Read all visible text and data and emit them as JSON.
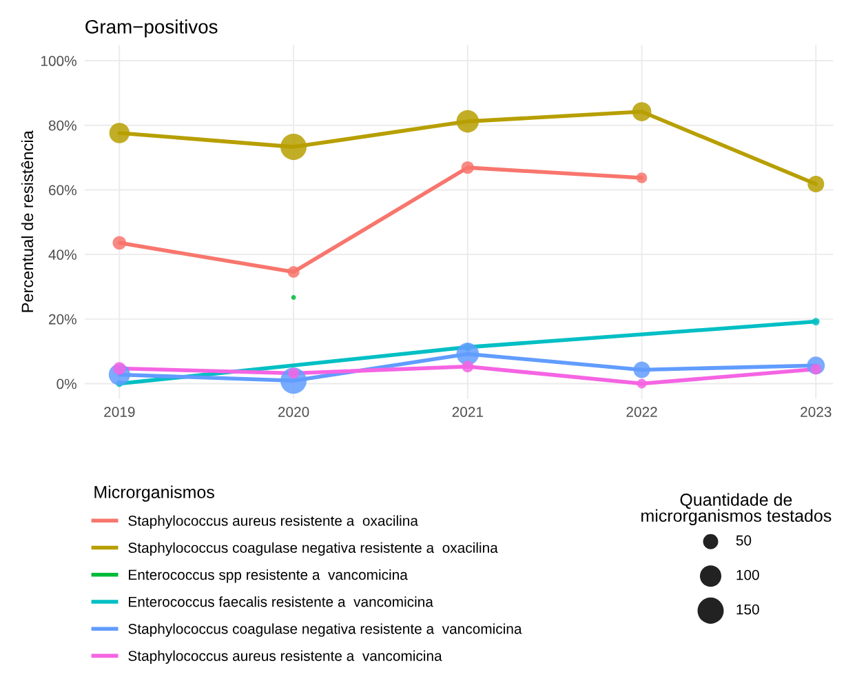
{
  "chart_data": {
    "type": "line",
    "title": "Gram−positivos",
    "ylabel": "Percentual de resistência",
    "legend_title": "Microrganismos",
    "x": [
      2019,
      2020,
      2021,
      2022,
      2023
    ],
    "xlim": [
      2018.8,
      2023.1
    ],
    "xticks": [
      2019,
      2020,
      2021,
      2022,
      2023
    ],
    "ylim": [
      -4.7,
      104.9
    ],
    "yticks": [
      {
        "value": 0,
        "label": "0%"
      },
      {
        "value": 20,
        "label": "20%"
      },
      {
        "value": 40,
        "label": "40%"
      },
      {
        "value": 60,
        "label": "60%"
      },
      {
        "value": 80,
        "label": "80%"
      },
      {
        "value": 100,
        "label": "100%"
      }
    ],
    "grid": true,
    "legend": "bottom",
    "line_style": "solid",
    "size_legend": [
      50,
      100,
      150
    ],
    "annotations": [
      "Quantidade de\nmicrorganismos testados"
    ],
    "series": [
      {
        "name": "Staphylococcus aureus resistente a  oxacilina",
        "color": "#f8766d",
        "values": [
          43.6,
          34.6,
          66.9,
          63.7,
          null
        ]
      },
      {
        "name": "Staphylococcus coagulase negativa resistente a  oxacilina",
        "color": "#b79f00",
        "values": [
          77.6,
          73.3,
          81.2,
          84.2,
          61.8
        ]
      },
      {
        "name": "Enterococcus spp resistente a  vancomicina",
        "type": "bubble",
        "marker": "circle",
        "color": "#00ba38",
        "x": [
          2020
        ],
        "values": [
          26.7
        ],
        "sizes": [
          5
        ]
      },
      {
        "name": "Enterococcus faecalis resistente a  vancomicina",
        "color": "#00bfc4",
        "x": [
          2019,
          2021,
          2023
        ],
        "values": [
          0,
          11.3,
          19.2
        ]
      },
      {
        "name": "Staphylococcus coagulase negativa resistente a  vancomicina",
        "color": "#619cff",
        "values": [
          2.8,
          0.9,
          9.2,
          4.3,
          5.6
        ]
      },
      {
        "name": "Staphylococcus aureus resistente a  vancomicina",
        "color": "#f564e3",
        "values": [
          4.7,
          3.2,
          5.3,
          0,
          4.5
        ]
      },
      {
        "type": "bubble",
        "marker": "circle",
        "color": "#f8766d",
        "values": [
          43.6,
          34.6,
          66.9,
          63.7,
          null
        ],
        "sizes": [
          40,
          30,
          35,
          25,
          null
        ]
      },
      {
        "type": "bubble",
        "marker": "circle",
        "color": "#b79f00",
        "values": [
          77.6,
          73.3,
          81.2,
          84.2,
          61.8
        ],
        "sizes": [
          90,
          150,
          110,
          80,
          60
        ]
      },
      {
        "type": "bubble",
        "marker": "circle",
        "color": "#00bfc4",
        "x": [
          2019,
          2021,
          2023
        ],
        "values": [
          0,
          11.3,
          19.2
        ],
        "sizes": [
          10,
          15,
          12
        ]
      },
      {
        "type": "bubble",
        "marker": "circle",
        "color": "#619cff",
        "values": [
          2.8,
          0.9,
          9.2,
          4.3,
          5.6
        ],
        "sizes": [
          100,
          150,
          110,
          60,
          70
        ]
      },
      {
        "type": "bubble",
        "marker": "circle",
        "color": "#f564e3",
        "values": [
          4.7,
          3.2,
          5.3,
          0,
          4.5
        ],
        "sizes": [
          35,
          25,
          30,
          20,
          25
        ]
      }
    ]
  }
}
